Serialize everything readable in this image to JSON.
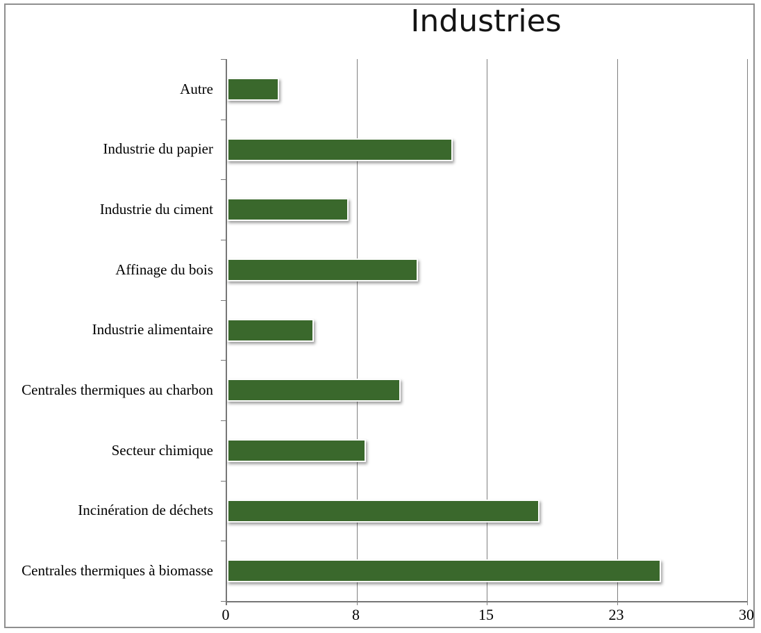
{
  "chart_data": {
    "type": "bar",
    "orientation": "horizontal",
    "title": "Industries",
    "categories": [
      "Autre",
      "Industrie du papier",
      "Industrie du ciment",
      "Affinage du bois",
      "Industrie alimentaire",
      "Centrales thermiques au charbon",
      "Secteur chimique",
      "Incinération de déchets",
      "Centrales thermiques à biomasse"
    ],
    "values": [
      3,
      13,
      7,
      11,
      5,
      10,
      8,
      18,
      25
    ],
    "xlabel": "",
    "ylabel": "",
    "xlim": [
      0,
      30
    ],
    "x_ticks": [
      {
        "value": 0,
        "label": "0"
      },
      {
        "value": 7.5,
        "label": "8"
      },
      {
        "value": 15,
        "label": "15"
      },
      {
        "value": 22.5,
        "label": "23"
      },
      {
        "value": 30,
        "label": "30"
      }
    ],
    "grid": "vertical-gridlines",
    "legend": "none",
    "bar_color": "#3A682C",
    "gridline_color": "#7F7F7F",
    "axis_color": "#767676",
    "frame_color": "#8F8F8F"
  }
}
